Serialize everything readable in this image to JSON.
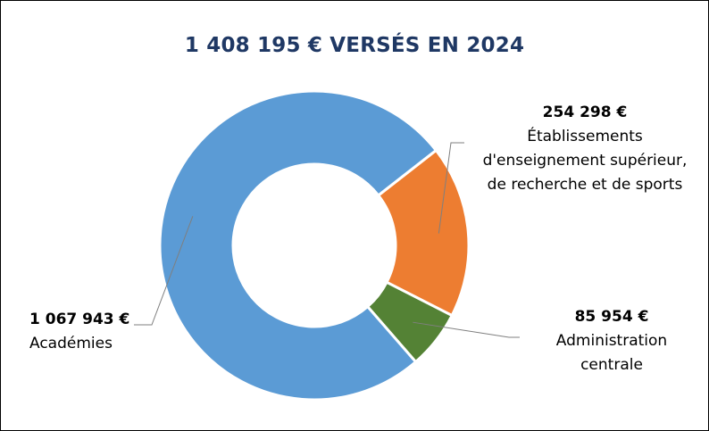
{
  "chart_data": {
    "type": "pie",
    "variant": "donut",
    "title": "1 408 195 € VERSÉS EN 2024",
    "categories": [
      "Établissements d'enseignement supérieur, de recherche et de sports",
      "Administration centrale",
      "Académies"
    ],
    "values": [
      254298,
      85954,
      1067943
    ],
    "value_labels": [
      "254 298 €",
      "85 954 €",
      "1 067 943 €"
    ],
    "colors": [
      "#ed7d31",
      "#548235",
      "#5b9bd5"
    ],
    "legend": "none"
  },
  "labels": {
    "etab_value": "254 298 €",
    "etab_line1": "Établissements",
    "etab_line2": "d'enseignement supérieur,",
    "etab_line3": "de recherche et de sports",
    "admin_value": "85 954 €",
    "admin_line1": "Administration",
    "admin_line2": "centrale",
    "acad_value": "1 067 943 €",
    "acad_line1": "Académies"
  },
  "colors": {
    "title": "#1f3864",
    "leader": "#7f7f7f"
  }
}
